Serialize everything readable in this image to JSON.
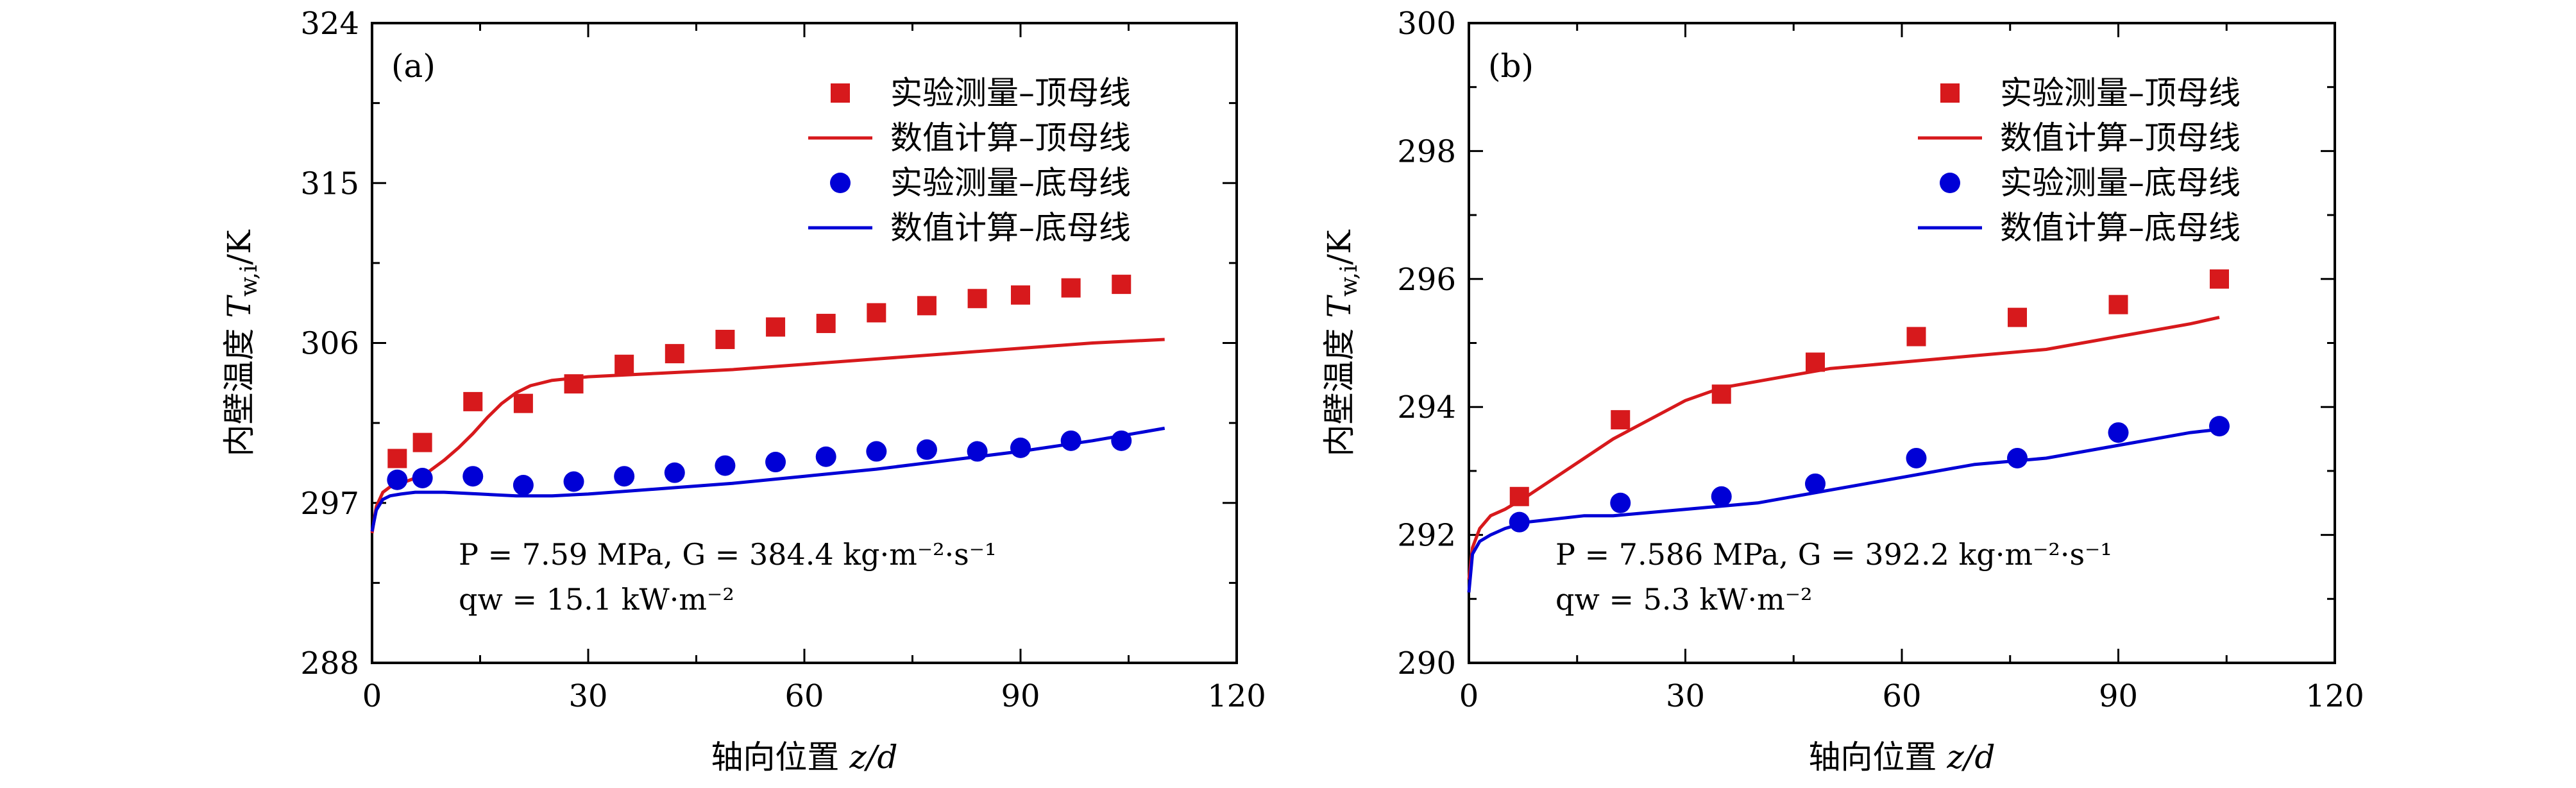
{
  "chart_data": [
    {
      "type": "scatter",
      "panel_label": "(a)",
      "xlabel_text": "轴向位置 ",
      "xlabel_var": "z/d",
      "ylabel_text": "内壁温度 ",
      "ylabel_var": "T",
      "ylabel_sub": "w,i",
      "ylabel_unit": "/K",
      "xlim": [
        0,
        120
      ],
      "ylim": [
        288,
        324
      ],
      "xticks": [
        0,
        30,
        60,
        90,
        120
      ],
      "yticks": [
        288,
        297,
        306,
        315,
        324
      ],
      "xtick_labels": [
        "0",
        "30",
        "60",
        "90",
        "120"
      ],
      "ytick_labels": [
        "288",
        "297",
        "306",
        "315",
        "324"
      ],
      "grid": false,
      "legend_position": "top-right",
      "condition_line1": "P = 7.59 MPa, G = 384.4 kg·m⁻²·s⁻¹",
      "condition_line2": "qw = 15.1 kW·m⁻²",
      "series": [
        {
          "name": "实验测量–顶母线",
          "kind": "square",
          "color": "#d7191c",
          "x": [
            3.5,
            7,
            14,
            21,
            28,
            35,
            42,
            49,
            56,
            63,
            70,
            77,
            84,
            90,
            97,
            104
          ],
          "y": [
            299.5,
            300.4,
            302.7,
            302.6,
            303.7,
            304.8,
            305.4,
            306.2,
            306.9,
            307.1,
            307.7,
            308.1,
            308.5,
            308.7,
            309.1,
            309.3
          ]
        },
        {
          "name": "数值计算–顶母线",
          "kind": "line",
          "color": "#d7191c",
          "x": [
            0,
            0.6,
            1.5,
            2.5,
            4,
            6,
            8,
            10,
            12,
            14,
            16,
            18,
            20,
            22,
            25,
            30,
            35,
            40,
            50,
            60,
            70,
            80,
            90,
            100,
            110
          ],
          "y": [
            295.3,
            296.8,
            297.6,
            297.9,
            298.1,
            298.4,
            298.8,
            299.4,
            300.1,
            300.9,
            301.8,
            302.6,
            303.2,
            303.6,
            303.9,
            304.1,
            304.2,
            304.3,
            304.5,
            304.8,
            305.1,
            305.4,
            305.7,
            306.0,
            306.2
          ]
        },
        {
          "name": "实验测量–底母线",
          "kind": "circle",
          "color": "#0000d6",
          "x": [
            3.5,
            7,
            14,
            21,
            28,
            35,
            42,
            49,
            56,
            63,
            70,
            77,
            84,
            90,
            97,
            104
          ],
          "y": [
            298.3,
            298.4,
            298.5,
            298.0,
            298.2,
            298.5,
            298.7,
            299.1,
            299.3,
            299.6,
            299.9,
            300.0,
            299.9,
            300.1,
            300.5,
            300.5
          ]
        },
        {
          "name": "数值计算–底母线",
          "kind": "line",
          "color": "#0000d6",
          "x": [
            0,
            0.6,
            1.5,
            2.5,
            4,
            6,
            10,
            15,
            20,
            25,
            30,
            40,
            50,
            60,
            70,
            80,
            90,
            100,
            110
          ],
          "y": [
            295.4,
            296.6,
            297.2,
            297.4,
            297.5,
            297.6,
            297.6,
            297.5,
            297.4,
            297.4,
            297.5,
            297.8,
            298.1,
            298.5,
            298.9,
            299.4,
            299.9,
            300.5,
            301.2
          ]
        }
      ]
    },
    {
      "type": "scatter",
      "panel_label": "(b)",
      "xlabel_text": "轴向位置 ",
      "xlabel_var": "z/d",
      "ylabel_text": "内壁温度 ",
      "ylabel_var": "T",
      "ylabel_sub": "w,i",
      "ylabel_unit": "/K",
      "xlim": [
        0,
        120
      ],
      "ylim": [
        290,
        300
      ],
      "xticks": [
        0,
        30,
        60,
        90,
        120
      ],
      "yticks": [
        290,
        292,
        294,
        296,
        298,
        300
      ],
      "xtick_labels": [
        "0",
        "30",
        "60",
        "90",
        "120"
      ],
      "ytick_labels": [
        "290",
        "292",
        "294",
        "296",
        "298",
        "300"
      ],
      "grid": false,
      "legend_position": "top-right",
      "condition_line1": "P = 7.586 MPa, G = 392.2 kg·m⁻²·s⁻¹",
      "condition_line2": "qw = 5.3 kW·m⁻²",
      "series": [
        {
          "name": "实验测量–顶母线",
          "kind": "square",
          "color": "#d7191c",
          "x": [
            7,
            21,
            35,
            48,
            62,
            76,
            90,
            104
          ],
          "y": [
            292.6,
            293.8,
            294.2,
            294.7,
            295.1,
            295.4,
            295.6,
            296.0
          ]
        },
        {
          "name": "数值计算–顶母线",
          "kind": "line",
          "color": "#d7191c",
          "x": [
            0,
            0.5,
            1.5,
            3,
            5,
            8,
            12,
            16,
            20,
            25,
            30,
            35,
            40,
            50,
            60,
            70,
            80,
            90,
            100,
            104
          ],
          "y": [
            291.3,
            291.8,
            292.1,
            292.3,
            292.4,
            292.6,
            292.9,
            293.2,
            293.5,
            293.8,
            294.1,
            294.3,
            294.4,
            294.6,
            294.7,
            294.8,
            294.9,
            295.1,
            295.3,
            295.4
          ]
        },
        {
          "name": "实验测量–底母线",
          "kind": "circle",
          "color": "#0000d6",
          "x": [
            7,
            21,
            35,
            48,
            62,
            76,
            90,
            104
          ],
          "y": [
            292.2,
            292.5,
            292.6,
            292.8,
            293.2,
            293.2,
            293.6,
            293.7
          ]
        },
        {
          "name": "数值计算–底母线",
          "kind": "line",
          "color": "#0000d6",
          "x": [
            0,
            0.5,
            1.5,
            3,
            5,
            8,
            12,
            16,
            20,
            30,
            40,
            50,
            60,
            70,
            80,
            90,
            100,
            104
          ],
          "y": [
            291.1,
            291.7,
            291.9,
            292.0,
            292.1,
            292.2,
            292.25,
            292.3,
            292.3,
            292.4,
            292.5,
            292.7,
            292.9,
            293.1,
            293.2,
            293.4,
            293.6,
            293.65
          ]
        }
      ]
    }
  ]
}
